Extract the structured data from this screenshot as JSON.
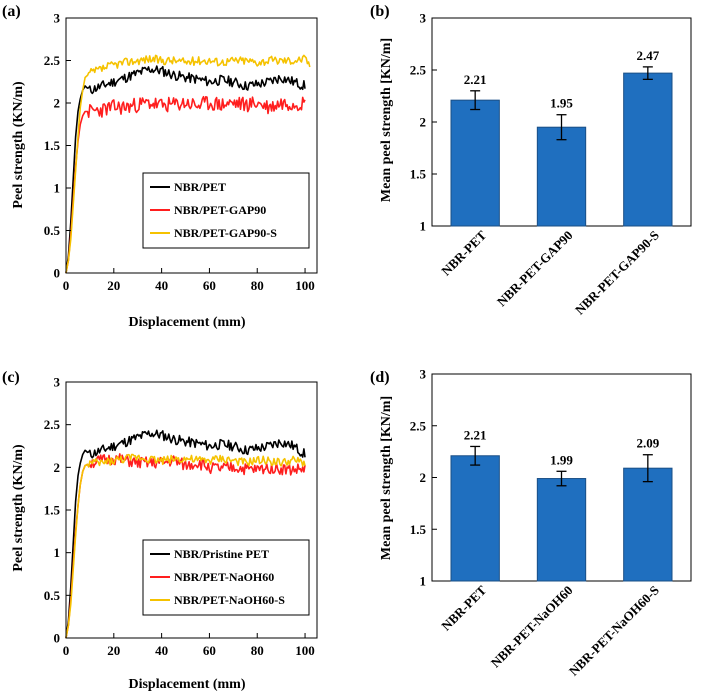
{
  "colors": {
    "black": "#000000",
    "red": "#ff1e1e",
    "yellow": "#f5c200",
    "bar": "#1f6fbf",
    "bar_edge": "#1a4f86"
  },
  "chart_data": [
    {
      "id": "a",
      "type": "line",
      "panel_label": "(a)",
      "xlabel": "Displacement (mm)",
      "ylabel": "Peel strength (KN/m)",
      "xlim": [
        0,
        105
      ],
      "ylim": [
        0,
        3
      ],
      "xticks": [
        "0",
        "20",
        "40",
        "60",
        "80",
        "100"
      ],
      "yticks": [
        "0",
        "0.5",
        "1",
        "1.5",
        "2",
        "2.5",
        "3"
      ],
      "legend_position": "middle-right",
      "series": [
        {
          "name": "NBR/PET",
          "color": "#000000",
          "x": [
            0,
            1,
            2,
            3,
            4,
            5,
            6,
            7,
            8,
            10,
            15,
            20,
            25,
            30,
            35,
            40,
            45,
            50,
            55,
            60,
            65,
            70,
            75,
            80,
            85,
            90,
            95,
            100
          ],
          "y": [
            0,
            0.2,
            0.6,
            1.1,
            1.6,
            1.9,
            2.05,
            2.15,
            2.2,
            2.15,
            2.2,
            2.25,
            2.3,
            2.35,
            2.4,
            2.38,
            2.33,
            2.3,
            2.28,
            2.25,
            2.27,
            2.25,
            2.2,
            2.22,
            2.25,
            2.3,
            2.25,
            2.2
          ],
          "noise": 0.06,
          "seed": 11
        },
        {
          "name": "NBR/PET-GAP90",
          "color": "#ff1e1e",
          "x": [
            0,
            1,
            2,
            3,
            4,
            5,
            6,
            7,
            8,
            10,
            15,
            20,
            25,
            30,
            35,
            40,
            45,
            50,
            55,
            60,
            65,
            70,
            75,
            80,
            85,
            90,
            95,
            100
          ],
          "y": [
            0,
            0.15,
            0.45,
            0.85,
            1.25,
            1.55,
            1.75,
            1.85,
            1.9,
            1.9,
            1.92,
            1.95,
            1.95,
            1.98,
            2,
            1.97,
            1.98,
            2,
            1.97,
            2,
            1.98,
            2,
            1.98,
            2,
            1.95,
            2,
            2,
            2
          ],
          "noise": 0.09,
          "seed": 23
        },
        {
          "name": "NBR/PET-GAP90-S",
          "color": "#f5c200",
          "x": [
            0,
            1,
            2,
            3,
            4,
            5,
            6,
            7,
            8,
            10,
            15,
            20,
            25,
            30,
            35,
            40,
            45,
            50,
            55,
            60,
            65,
            70,
            75,
            80,
            85,
            90,
            95,
            100,
            102
          ],
          "y": [
            0,
            0.15,
            0.4,
            0.8,
            1.2,
            1.6,
            1.95,
            2.15,
            2.3,
            2.35,
            2.4,
            2.45,
            2.48,
            2.5,
            2.52,
            2.5,
            2.5,
            2.48,
            2.5,
            2.5,
            2.48,
            2.5,
            2.5,
            2.48,
            2.5,
            2.5,
            2.5,
            2.52,
            2.45
          ],
          "noise": 0.05,
          "seed": 37
        }
      ]
    },
    {
      "id": "b",
      "type": "bar",
      "panel_label": "(b)",
      "ylabel": "Mean peel strength [KN/m]",
      "ylim": [
        1,
        3
      ],
      "yticks": [
        "1",
        "1.5",
        "2",
        "2.5",
        "3"
      ],
      "categories": [
        "NBR-PET",
        "NBR-PET-GAP90",
        "NBR-PET-GAP90-S"
      ],
      "values": [
        2.21,
        1.95,
        2.47
      ],
      "errors": [
        0.09,
        0.12,
        0.06
      ],
      "value_labels": [
        "2.21",
        "1.95",
        "2.47"
      ]
    },
    {
      "id": "c",
      "type": "line",
      "panel_label": "(c)",
      "xlabel": "Displacement (mm)",
      "ylabel": "Peel strength (KN/m)",
      "xlim": [
        0,
        105
      ],
      "ylim": [
        0,
        3
      ],
      "xticks": [
        "0",
        "20",
        "40",
        "60",
        "80",
        "100"
      ],
      "yticks": [
        "0",
        "0.5",
        "1",
        "1.5",
        "2",
        "2.5",
        "3"
      ],
      "legend_position": "bottom-right",
      "series": [
        {
          "name": "NBR/Pristine PET",
          "color": "#000000",
          "x": [
            0,
            1,
            2,
            3,
            4,
            5,
            6,
            7,
            8,
            10,
            15,
            20,
            25,
            30,
            35,
            40,
            45,
            50,
            55,
            60,
            65,
            70,
            75,
            80,
            85,
            90,
            95,
            100
          ],
          "y": [
            0,
            0.2,
            0.6,
            1.1,
            1.6,
            1.9,
            2.05,
            2.15,
            2.2,
            2.15,
            2.2,
            2.25,
            2.3,
            2.35,
            2.4,
            2.38,
            2.33,
            2.3,
            2.28,
            2.25,
            2.27,
            2.25,
            2.2,
            2.22,
            2.25,
            2.3,
            2.25,
            2.15
          ],
          "noise": 0.06,
          "seed": 11
        },
        {
          "name": "NBR/PET-NaOH60",
          "color": "#ff1e1e",
          "x": [
            0,
            1,
            2,
            3,
            4,
            5,
            6,
            7,
            8,
            10,
            15,
            20,
            25,
            30,
            35,
            40,
            45,
            50,
            55,
            60,
            65,
            70,
            75,
            80,
            85,
            90,
            95,
            100
          ],
          "y": [
            0,
            0.15,
            0.45,
            0.85,
            1.25,
            1.55,
            1.8,
            1.95,
            2.02,
            2.05,
            2.08,
            2.1,
            2.08,
            2.05,
            2.05,
            2.05,
            2.08,
            2.02,
            2.05,
            2,
            1.98,
            2,
            1.98,
            1.97,
            2,
            1.98,
            1.97,
            1.98
          ],
          "noise": 0.07,
          "seed": 51
        },
        {
          "name": "NBR/PET-NaOH60-S",
          "color": "#f5c200",
          "x": [
            0,
            1,
            2,
            3,
            4,
            5,
            6,
            7,
            8,
            10,
            15,
            20,
            25,
            30,
            35,
            40,
            45,
            50,
            55,
            60,
            65,
            70,
            75,
            80,
            85,
            90,
            95,
            100
          ],
          "y": [
            0,
            0.15,
            0.4,
            0.8,
            1.2,
            1.55,
            1.8,
            1.95,
            2.02,
            2.05,
            2.05,
            2.08,
            2.1,
            2.12,
            2.1,
            2.08,
            2.1,
            2.1,
            2.08,
            2.08,
            2.1,
            2.08,
            2.05,
            2.08,
            2.08,
            2.05,
            2.08,
            2.05
          ],
          "noise": 0.05,
          "seed": 73
        }
      ]
    },
    {
      "id": "d",
      "type": "bar",
      "panel_label": "(d)",
      "ylabel": "Mean peel strength [KN/m]",
      "ylim": [
        1,
        3
      ],
      "yticks": [
        "1",
        "1.5",
        "2",
        "2.5",
        "3"
      ],
      "categories": [
        "NBR-PET",
        "NBR-PET-NaOH60",
        "NBR-PET-NaOH60-S"
      ],
      "values": [
        2.21,
        1.99,
        2.09
      ],
      "errors": [
        0.09,
        0.07,
        0.13
      ],
      "value_labels": [
        "2.21",
        "1.99",
        "2.09"
      ]
    }
  ]
}
